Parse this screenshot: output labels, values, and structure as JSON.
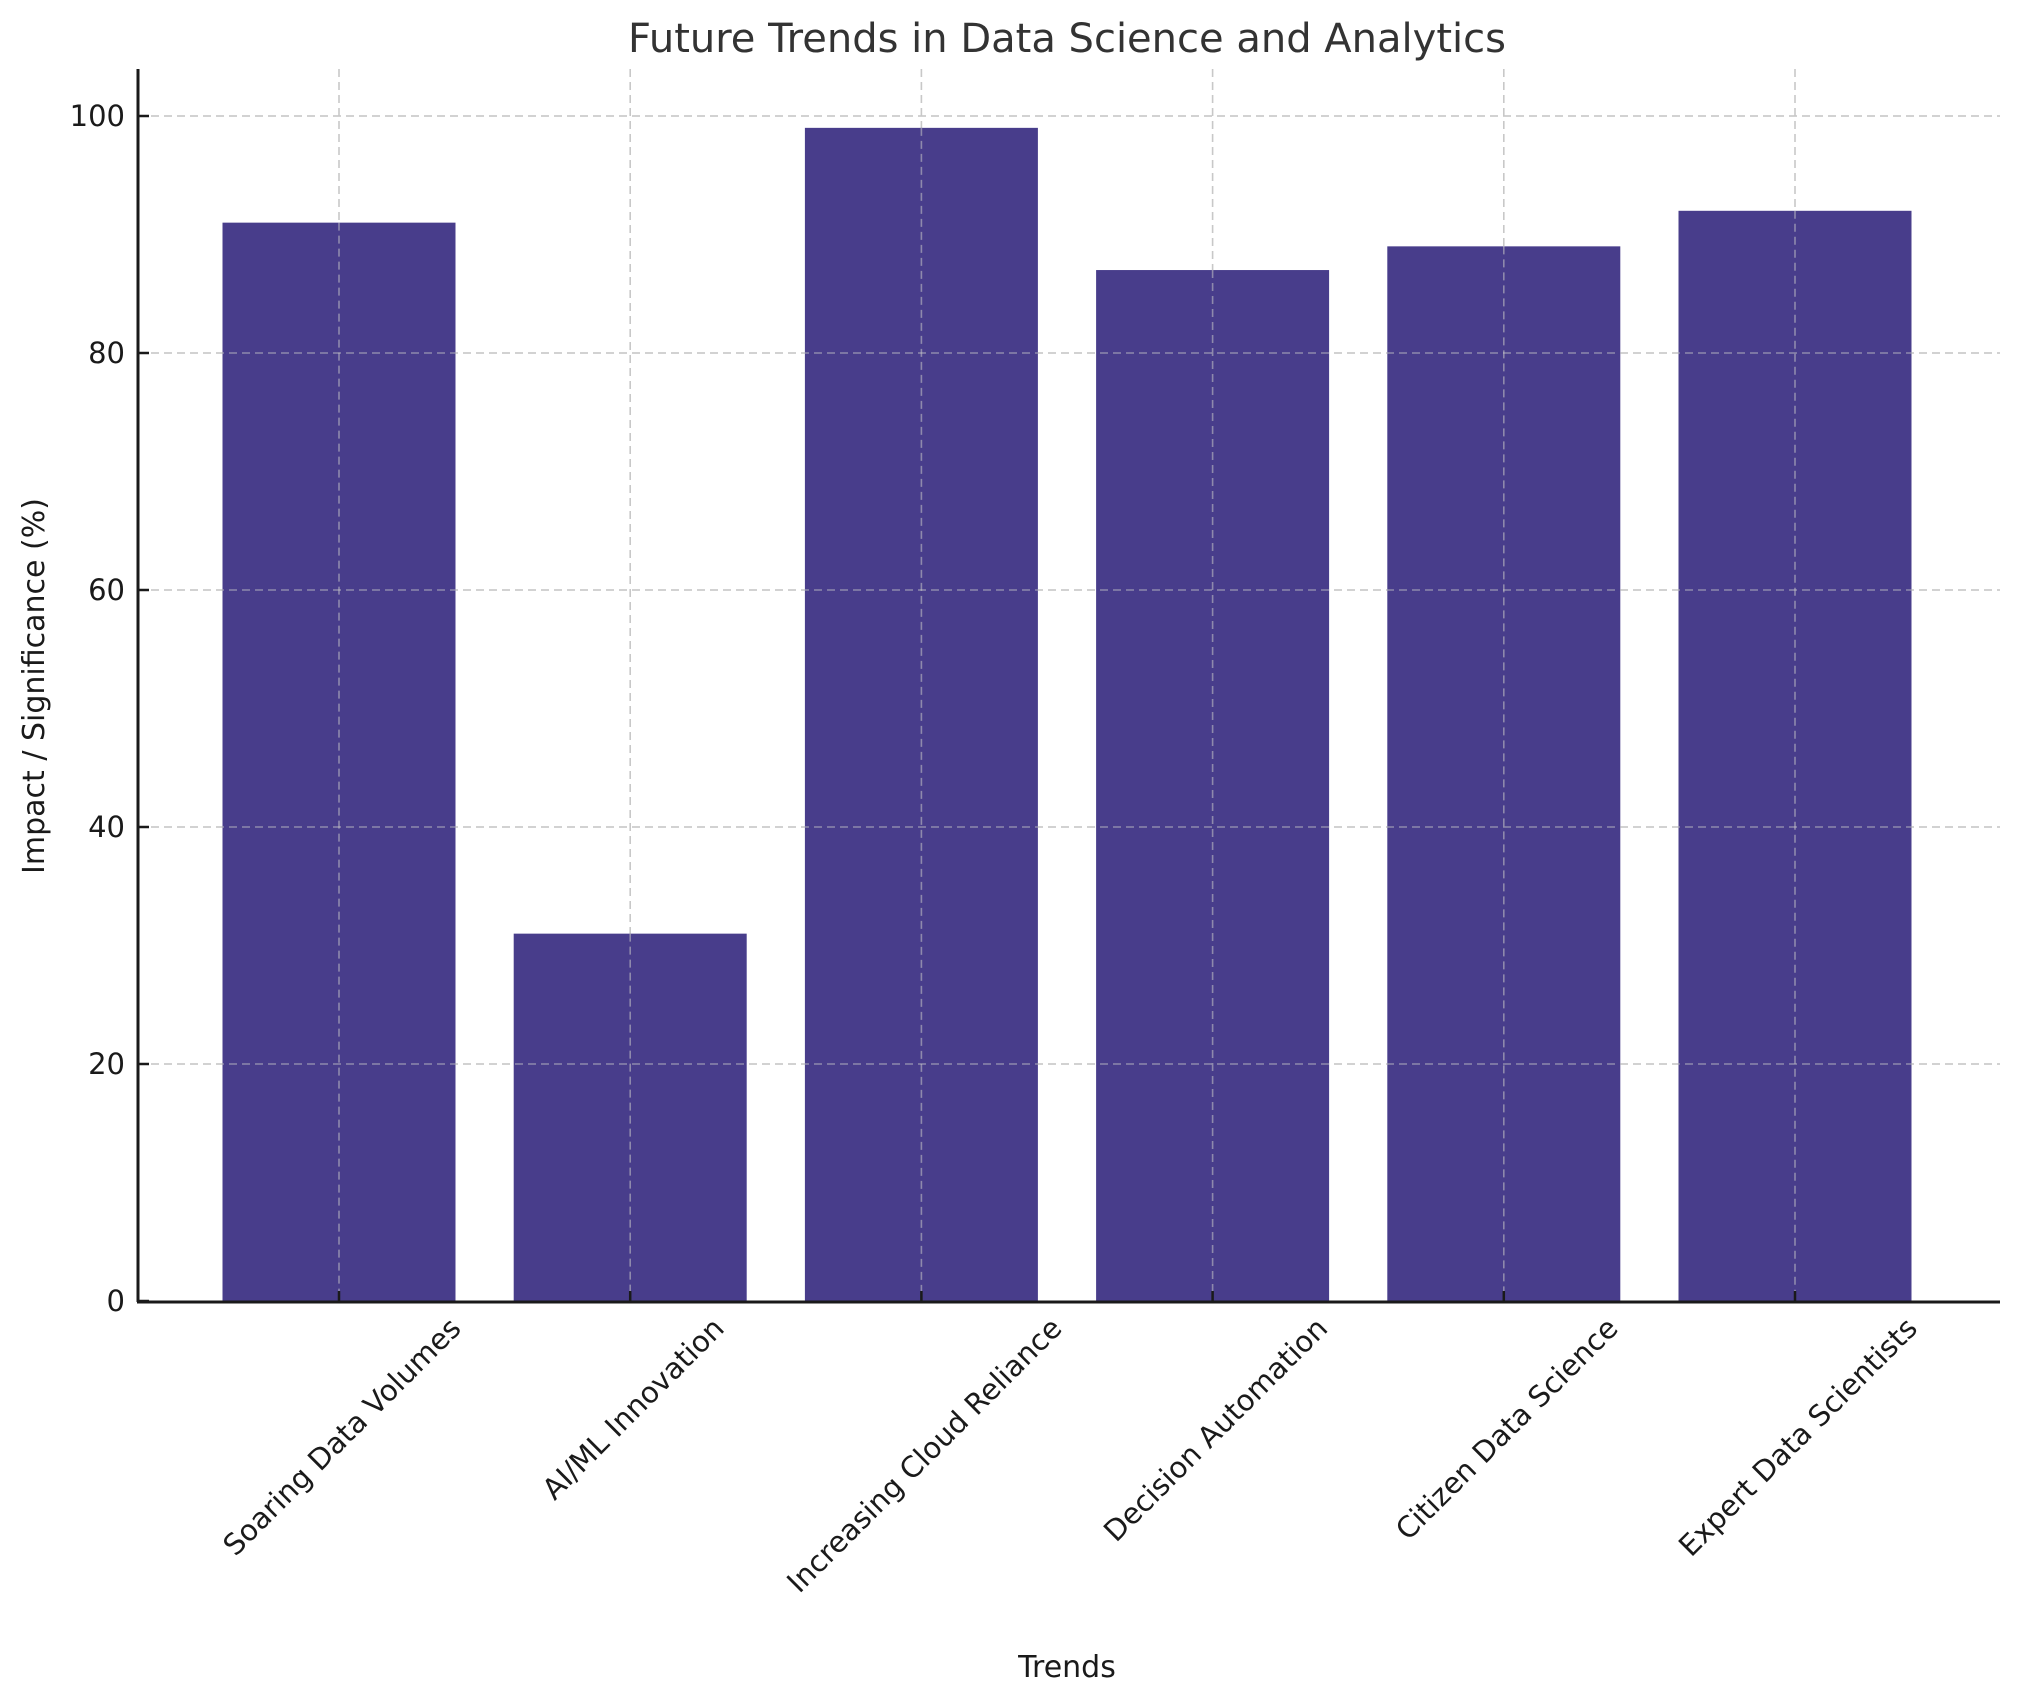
{
  "chart_data": {
    "type": "bar",
    "title": "Future Trends in Data Science and Analytics",
    "xlabel": "Trends",
    "ylabel": "Impact / Significance (%)",
    "categories": [
      "Soaring Data Volumes",
      "AI/ML Innovation",
      "Increasing Cloud Reliance",
      "Decision Automation",
      "Citizen Data Science",
      "Expert Data Scientists"
    ],
    "values": [
      91,
      31,
      99,
      87,
      89,
      92
    ],
    "ylim": [
      0,
      104
    ],
    "yticks": [
      0,
      20,
      40,
      60,
      80,
      100
    ],
    "xtick_rotation": 45,
    "grid": true,
    "legend": null,
    "bar_color": "#483d8b"
  },
  "colors": {
    "bar": "#483d8b",
    "grid": "#c8c8c8",
    "axis": "#1a1a1a",
    "title": "#333333"
  }
}
